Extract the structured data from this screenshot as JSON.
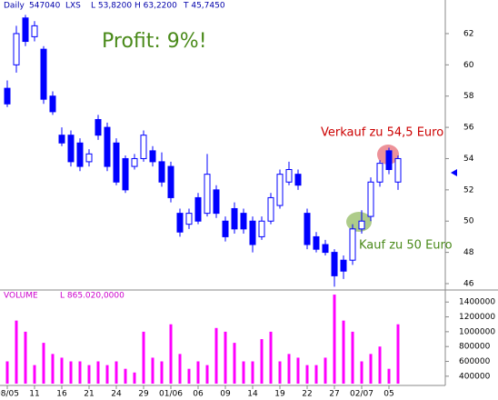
{
  "chart_data": [
    {
      "type": "candlestick",
      "header": [
        "Daily",
        "547040",
        "LXS",
        "L  53,8200",
        "H  63,2200",
        "T  45,7450"
      ],
      "annotations": [
        "Profit: 9%!",
        "Verkauf zu 54,5 Euro",
        "Kauf zu 50 Euro"
      ],
      "color": "#0000ff",
      "open": [
        58.5,
        60.0,
        63.0,
        61.8,
        61.0,
        58.0,
        55.5,
        55.5,
        55.0,
        53.8,
        56.5,
        56.0,
        55.0,
        54.0,
        53.5,
        54.0,
        54.5,
        53.8,
        53.5,
        50.5,
        49.8,
        51.5,
        50.5,
        52.0,
        50.0,
        50.8,
        50.5,
        50.0,
        49.0,
        50.0,
        51.0,
        52.5,
        53.0,
        50.5,
        49.0,
        48.5,
        48.0,
        47.5,
        47.5,
        49.5,
        50.3,
        52.5,
        54.5,
        52.5
      ],
      "high": [
        59.0,
        62.5,
        63.2,
        62.8,
        61.2,
        58.3,
        56.0,
        55.8,
        55.3,
        54.6,
        56.8,
        56.3,
        55.3,
        54.2,
        54.3,
        55.8,
        54.8,
        54.4,
        53.8,
        50.8,
        50.8,
        51.8,
        54.3,
        52.3,
        50.3,
        51.2,
        50.8,
        50.3,
        50.3,
        51.8,
        53.3,
        53.8,
        53.3,
        50.8,
        49.3,
        48.8,
        48.2,
        47.8,
        49.8,
        50.7,
        52.8,
        53.9,
        54.7,
        54.2
      ],
      "low": [
        57.3,
        59.5,
        61.2,
        61.5,
        57.5,
        56.8,
        54.8,
        53.5,
        53.2,
        53.5,
        55.2,
        53.2,
        52.3,
        51.8,
        53.3,
        53.8,
        53.5,
        52.2,
        51.2,
        49.0,
        49.5,
        49.8,
        50.3,
        50.2,
        48.7,
        49.2,
        49.2,
        48.0,
        48.8,
        49.8,
        50.8,
        52.3,
        52.0,
        48.2,
        48.0,
        47.8,
        45.8,
        46.3,
        47.2,
        49.2,
        50.0,
        52.2,
        53.0,
        52.0
      ],
      "close": [
        57.5,
        62.0,
        61.5,
        62.5,
        57.8,
        57.0,
        55.0,
        53.8,
        53.5,
        54.3,
        55.5,
        53.5,
        52.5,
        52.0,
        54.0,
        55.5,
        53.8,
        52.5,
        51.5,
        49.3,
        50.5,
        50.0,
        53.0,
        50.5,
        49.0,
        49.5,
        49.5,
        48.5,
        50.0,
        51.5,
        53.0,
        53.3,
        52.3,
        48.5,
        48.2,
        48.0,
        46.5,
        46.8,
        49.5,
        50.0,
        52.5,
        53.7,
        53.3,
        54.0
      ],
      "ylim": [
        45.65,
        64.15
      ],
      "yticks": [
        46,
        48,
        50,
        52,
        54,
        56,
        58,
        60,
        62
      ]
    },
    {
      "type": "bar",
      "title": "VOLUME",
      "subtitle": "L  865.020,0000",
      "color": "#ff00ff",
      "categories": [
        "08/05",
        null,
        null,
        "11",
        null,
        null,
        "16",
        null,
        null,
        "21",
        null,
        null,
        "24",
        null,
        null,
        "29",
        null,
        null,
        "01/06",
        null,
        null,
        "06",
        null,
        null,
        "09",
        null,
        null,
        "14",
        null,
        null,
        "19",
        null,
        null,
        "22",
        null,
        null,
        "27",
        null,
        null,
        "02/07",
        null,
        null,
        "05",
        null
      ],
      "values": [
        600000,
        1150000,
        1000000,
        550000,
        850000,
        700000,
        650000,
        600000,
        600000,
        550000,
        600000,
        550000,
        600000,
        500000,
        450000,
        1000000,
        650000,
        600000,
        1100000,
        700000,
        500000,
        600000,
        550000,
        1050000,
        1000000,
        850000,
        600000,
        600000,
        900000,
        1000000,
        600000,
        700000,
        650000,
        550000,
        550000,
        650000,
        1500000,
        1150000,
        1000000,
        600000,
        700000,
        800000,
        500000,
        1100000
      ],
      "ylim": [
        300000,
        1550000
      ],
      "yticks": [
        400000,
        600000,
        800000,
        1000000,
        1200000,
        1400000
      ]
    }
  ]
}
